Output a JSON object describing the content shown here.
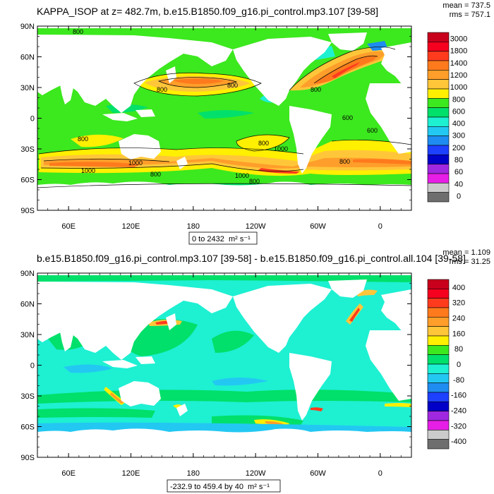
{
  "panels": [
    {
      "title": "KAPPA_ISOP at z= 482.7m, b.e15.B1850.f09_g16.pi_control.mp3.107 [39-58]",
      "stats": [
        "mean = 737.5",
        "rms = 757.1"
      ],
      "range_label": "0 to 2432",
      "range_unit": "m² s⁻¹",
      "contour_labels": [
        "800",
        "800",
        "800",
        "800",
        "1000",
        "1000",
        "800",
        "600",
        "600",
        "800",
        "800",
        "1000",
        "1000",
        "800",
        "800",
        "600",
        "600",
        "800",
        "800",
        "1000",
        "1000",
        "800"
      ]
    },
    {
      "title": "b.e15.B1850.f09_g16.pi_control.mp3.107 [39-58] - b.e15.B1850.f09_g16.pi_control.all.104 [39-58]",
      "stats": [
        "mean = 1.109",
        "rms = 31.25"
      ],
      "range_label": "-232.9 to 459.4 by 40",
      "range_unit": "m² s⁻¹",
      "contour_labels": []
    }
  ],
  "chart_data": [
    {
      "type": "heatmap",
      "title": "KAPPA_ISOP at z= 482.7m, b.e15.B1850.f09_g16.pi_control.mp3.107 [39-58]",
      "y_ticks": [
        "90N",
        "60N",
        "30N",
        "0",
        "30S",
        "60S",
        "90S"
      ],
      "x_ticks": [
        "60E",
        "120E",
        "180",
        "120W",
        "60W",
        "0"
      ],
      "x_tick_lon": [
        60,
        120,
        180,
        240,
        300,
        360
      ],
      "lon_range": [
        30,
        390
      ],
      "lat_range": [
        -90,
        90
      ],
      "colorbar_levels": [
        "3000",
        "1800",
        "1400",
        "1200",
        "1000",
        "800",
        "600",
        "400",
        "300",
        "200",
        "80",
        "60",
        "40",
        "0"
      ],
      "colorbar_colors": [
        "#c8001c",
        "#f5001e",
        "#ff3b1e",
        "#ff7a1c",
        "#ff9e2a",
        "#ffc63a",
        "#ffef00",
        "#3ce81e",
        "#00e06a",
        "#1ef0d2",
        "#23c8f2",
        "#1e8cf0",
        "#1e40ff",
        "#0000c8",
        "#a028e0",
        "#e61ee6",
        "#cbcbcb",
        "#6e6e6e"
      ]
    },
    {
      "type": "heatmap",
      "title": "b.e15.B1850.f09_g16.pi_control.mp3.107 [39-58] - b.e15.B1850.f09_g16.pi_control.all.104 [39-58]",
      "y_ticks": [
        "90N",
        "60N",
        "30N",
        "0",
        "30S",
        "60S",
        "90S"
      ],
      "x_ticks": [
        "60E",
        "120E",
        "180",
        "120W",
        "60W",
        "0"
      ],
      "x_tick_lon": [
        60,
        120,
        180,
        240,
        300,
        360
      ],
      "lon_range": [
        30,
        390
      ],
      "lat_range": [
        -90,
        90
      ],
      "colorbar_levels": [
        "400",
        "320",
        "240",
        "160",
        "80",
        "0",
        "-80",
        "-160",
        "-240",
        "-320",
        "-400"
      ],
      "colorbar_colors": [
        "#c8001c",
        "#f5001e",
        "#ff3b1e",
        "#ff7a1c",
        "#ff9e2a",
        "#ffc63a",
        "#ffef00",
        "#3ce81e",
        "#00e06a",
        "#1ef0d2",
        "#23c8f2",
        "#1e8cf0",
        "#1e40ff",
        "#0000c8",
        "#a028e0",
        "#e61ee6",
        "#cbcbcb",
        "#6e6e6e"
      ]
    }
  ]
}
